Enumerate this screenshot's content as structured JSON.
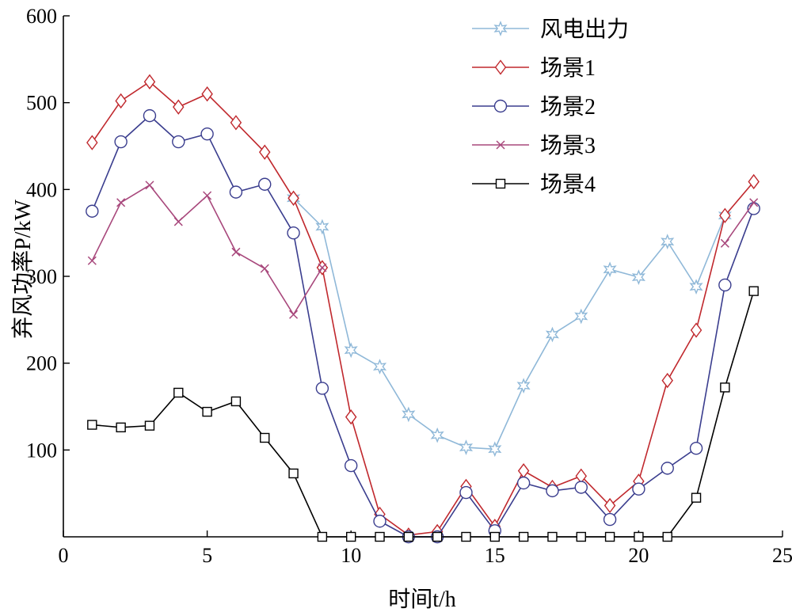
{
  "chart_data": {
    "type": "line",
    "xlabel": "时间t/h",
    "ylabel": "弃风功率P/kW",
    "xlim": [
      0,
      25
    ],
    "ylim": [
      0,
      600
    ],
    "xticks": [
      0,
      5,
      10,
      15,
      20,
      25
    ],
    "yticks": [
      100,
      200,
      300,
      400,
      500,
      600
    ],
    "x": [
      1,
      2,
      3,
      4,
      5,
      6,
      7,
      8,
      9,
      10,
      11,
      12,
      13,
      14,
      15,
      16,
      17,
      18,
      19,
      20,
      21,
      22,
      23,
      24
    ],
    "grid": false,
    "legend_position": "top-right",
    "series": [
      {
        "name": "风电出力",
        "color": "#8fb8d8",
        "marker": "star",
        "values": [
          null,
          null,
          null,
          null,
          null,
          null,
          null,
          390,
          357,
          215,
          196,
          141,
          117,
          103,
          101,
          174,
          233,
          254,
          308,
          299,
          340,
          288,
          370,
          null
        ]
      },
      {
        "name": "场景1",
        "color": "#c0282d",
        "marker": "diamond",
        "values": [
          454,
          502,
          524,
          495,
          510,
          477,
          443,
          390,
          310,
          138,
          26,
          2,
          6,
          58,
          12,
          76,
          57,
          70,
          36,
          64,
          180,
          238,
          370,
          409
        ]
      },
      {
        "name": "场景2",
        "color": "#3a3d8e",
        "marker": "circle",
        "values": [
          375,
          455,
          485,
          455,
          464,
          397,
          406,
          350,
          171,
          82,
          18,
          0,
          0,
          51,
          7,
          62,
          53,
          57,
          20,
          55,
          79,
          102,
          290,
          378
        ]
      },
      {
        "name": "场景3",
        "color": "#a8487c",
        "marker": "x",
        "values": [
          318,
          385,
          405,
          363,
          393,
          328,
          309,
          256,
          310,
          null,
          null,
          null,
          null,
          null,
          null,
          null,
          null,
          null,
          null,
          null,
          null,
          null,
          338,
          385
        ]
      },
      {
        "name": "场景4",
        "color": "#000000",
        "marker": "square",
        "values": [
          129,
          126,
          128,
          166,
          144,
          156,
          114,
          73,
          0,
          0,
          0,
          0,
          0,
          0,
          0,
          0,
          0,
          0,
          0,
          0,
          0,
          45,
          172,
          283
        ]
      }
    ]
  }
}
